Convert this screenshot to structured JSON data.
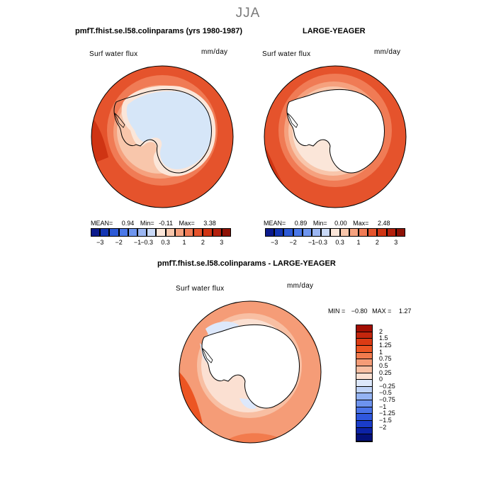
{
  "season_title": "JJA",
  "panels": [
    {
      "title": "pmfT.fhist.se.l58.colinparams (yrs 1980-1987)",
      "field_label": "Surf water flux",
      "units": "mm/day",
      "stats": {
        "mean_label": "MEAN=",
        "mean": "0.94",
        "min_label": "Min=",
        "min": "-0.11",
        "max_label": "Max=",
        "max": "3.38"
      },
      "colorbar": {
        "colors": [
          "#0b1a8c",
          "#1436b3",
          "#2d5ad6",
          "#4a78e8",
          "#6e95ee",
          "#9bb6f2",
          "#c9d9f7",
          "#fbe6d9",
          "#f8c6ab",
          "#f5a17e",
          "#f07b55",
          "#e5532c",
          "#cf3413",
          "#b3200d",
          "#8e1206"
        ],
        "ticks": [
          "−3",
          "−2",
          "−1",
          "−0.3",
          "0.3",
          "1",
          "2",
          "3"
        ]
      }
    },
    {
      "title": "LARGE-YEAGER",
      "field_label": "Surf water flux",
      "units": "mm/day",
      "stats": {
        "mean_label": "MEAN=",
        "mean": "0.89",
        "min_label": "Min=",
        "min": "0.00",
        "max_label": "Max=",
        "max": "2.48"
      },
      "colorbar": {
        "colors": [
          "#0b1a8c",
          "#1436b3",
          "#2d5ad6",
          "#4a78e8",
          "#6e95ee",
          "#9bb6f2",
          "#c9d9f7",
          "#fbe6d9",
          "#f8c6ab",
          "#f5a17e",
          "#f07b55",
          "#e5532c",
          "#cf3413",
          "#b3200d",
          "#8e1206"
        ],
        "ticks": [
          "−3",
          "−2",
          "−1",
          "−0.3",
          "0.3",
          "1",
          "2",
          "3"
        ]
      }
    },
    {
      "title": "pmfT.fhist.se.l58.colinparams - LARGE-YEAGER",
      "field_label": "Surf water flux",
      "units": "mm/day",
      "stats": {
        "min_label": "MIN =",
        "min": "−0.80",
        "max_label": "MAX =",
        "max": "1.27"
      },
      "colorbar": {
        "colors": [
          "#a30f03",
          "#c4260d",
          "#db3b14",
          "#ec5523",
          "#f27b4d",
          "#f59c77",
          "#f8bfa3",
          "#fbe0d2",
          "#dde8fb",
          "#bfd3f8",
          "#94b3f3",
          "#6d93ee",
          "#4a73e8",
          "#2f57de",
          "#1a3cc9",
          "#0c22a6",
          "#04107a"
        ],
        "ticks": [
          "2",
          "1.5",
          "1.25",
          "1",
          "0.75",
          "0.5",
          "0.25",
          "0",
          "−0.25",
          "−0.5",
          "−0.75",
          "−1",
          "−1.25",
          "−1.5",
          "−2"
        ]
      }
    }
  ]
}
